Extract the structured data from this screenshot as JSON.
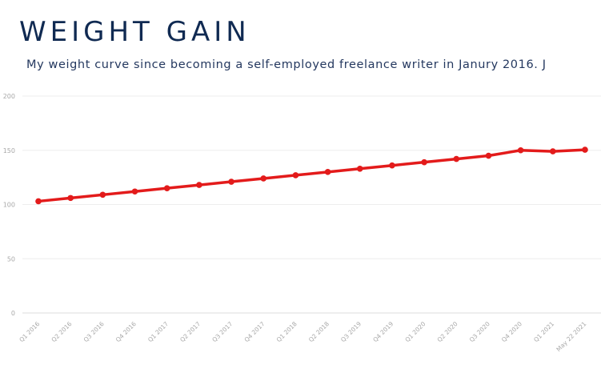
{
  "title": "WEIGHT GAIN",
  "subtitle": "My weight curve since becoming a self-employed freelance writer in Janury 2016. J",
  "colors": {
    "title": "#102a52",
    "subtitle": "#24385f",
    "series_line": "#e31b1b",
    "grid": "#eeeeee",
    "axis_text": "#a8a8a8"
  },
  "chart_data": {
    "type": "line",
    "title": "WEIGHT GAIN",
    "subtitle": "My weight curve since becoming a self-employed freelance writer in Janury 2016. J",
    "xlabel": "",
    "ylabel": "",
    "ylim": [
      0,
      200
    ],
    "yticks": [
      0,
      50,
      100,
      150,
      200
    ],
    "grid": true,
    "legend": "none",
    "categories": [
      "Q1 2016",
      "Q2 2016",
      "Q3 2016",
      "Q4 2016",
      "Q1 2017",
      "Q2 2017",
      "Q3 2017",
      "Q4 2017",
      "Q1 2018",
      "Q2 2018",
      "Q3 2019",
      "Q4 2019",
      "Q1 2020",
      "Q2 2020",
      "Q3 2020",
      "Q4 2020",
      "Q1 2021",
      "May 22 2021"
    ],
    "series": [
      {
        "values": [
          103,
          106,
          109,
          112,
          115,
          118,
          121,
          124,
          127,
          130,
          133,
          136,
          139,
          142,
          145,
          150,
          149,
          150.5
        ]
      }
    ]
  }
}
